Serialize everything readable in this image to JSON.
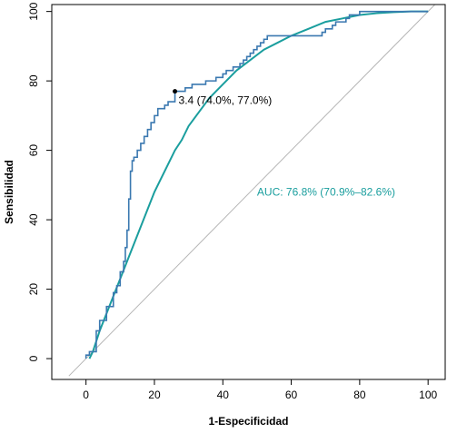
{
  "chart_data": {
    "type": "line",
    "xlabel": "1-Especificidad",
    "ylabel": "Sensibilidad",
    "xlim": [
      -10,
      105
    ],
    "ylim": [
      -6,
      102
    ],
    "x_ticks": [
      0,
      20,
      40,
      60,
      80,
      100
    ],
    "y_ticks": [
      0,
      20,
      40,
      60,
      80,
      100
    ],
    "grid": false,
    "colors": {
      "empirical": "#3a78b0",
      "smooth": "#1a9e9e",
      "diagonal": "#b5b5b5",
      "point": "#000000"
    },
    "series": [
      {
        "kind": "empirical-roc-step",
        "points": [
          [
            0,
            0
          ],
          [
            0,
            1
          ],
          [
            1,
            1
          ],
          [
            1,
            2
          ],
          [
            3,
            2
          ],
          [
            3,
            7
          ],
          [
            3,
            8
          ],
          [
            4,
            8
          ],
          [
            4,
            11
          ],
          [
            6,
            11
          ],
          [
            6,
            15
          ],
          [
            8,
            15
          ],
          [
            8,
            19
          ],
          [
            9,
            19
          ],
          [
            9,
            21
          ],
          [
            10,
            21
          ],
          [
            10,
            25
          ],
          [
            11,
            25
          ],
          [
            11,
            28
          ],
          [
            11.5,
            28
          ],
          [
            11.5,
            32
          ],
          [
            12,
            32
          ],
          [
            12,
            37
          ],
          [
            12.5,
            37
          ],
          [
            12.5,
            46
          ],
          [
            13,
            46
          ],
          [
            13,
            54
          ],
          [
            13.5,
            54
          ],
          [
            13.5,
            57
          ],
          [
            14,
            57
          ],
          [
            14,
            58
          ],
          [
            15,
            58
          ],
          [
            15,
            60
          ],
          [
            16,
            60
          ],
          [
            16,
            62
          ],
          [
            17,
            62
          ],
          [
            17,
            64
          ],
          [
            18,
            64
          ],
          [
            18,
            66
          ],
          [
            19,
            66
          ],
          [
            19,
            68
          ],
          [
            20,
            68
          ],
          [
            20,
            70
          ],
          [
            21,
            70
          ],
          [
            21,
            72
          ],
          [
            23,
            72
          ],
          [
            23,
            73
          ],
          [
            24,
            73
          ],
          [
            24,
            74
          ],
          [
            26,
            74
          ],
          [
            26,
            77
          ],
          [
            29,
            77
          ],
          [
            29,
            78
          ],
          [
            31,
            78
          ],
          [
            31,
            79
          ],
          [
            35,
            79
          ],
          [
            35,
            80
          ],
          [
            38,
            80
          ],
          [
            38,
            81
          ],
          [
            40,
            81
          ],
          [
            40,
            82
          ],
          [
            41,
            82
          ],
          [
            41,
            83
          ],
          [
            43,
            83
          ],
          [
            43,
            84
          ],
          [
            45,
            84
          ],
          [
            45,
            85
          ],
          [
            46,
            85
          ],
          [
            46,
            86
          ],
          [
            47,
            86
          ],
          [
            47,
            87
          ],
          [
            48,
            87
          ],
          [
            48,
            88
          ],
          [
            49,
            88
          ],
          [
            49,
            89
          ],
          [
            50,
            89
          ],
          [
            50,
            90
          ],
          [
            51,
            90
          ],
          [
            51,
            91
          ],
          [
            52,
            91
          ],
          [
            52,
            92
          ],
          [
            53,
            92
          ],
          [
            53,
            93
          ],
          [
            69,
            93
          ],
          [
            69,
            94
          ],
          [
            70,
            94
          ],
          [
            70,
            95
          ],
          [
            72,
            95
          ],
          [
            72,
            96
          ],
          [
            73,
            96
          ],
          [
            73,
            97
          ],
          [
            76,
            97
          ],
          [
            76,
            98
          ],
          [
            77,
            98
          ],
          [
            77,
            99
          ],
          [
            80,
            99
          ],
          [
            80,
            100
          ],
          [
            100,
            100
          ]
        ]
      },
      {
        "kind": "smoothed-roc",
        "points": [
          [
            1,
            0
          ],
          [
            2,
            2
          ],
          [
            3,
            5
          ],
          [
            4,
            8
          ],
          [
            6,
            13
          ],
          [
            8,
            18
          ],
          [
            10,
            23
          ],
          [
            12,
            28
          ],
          [
            14,
            33
          ],
          [
            16,
            38
          ],
          [
            18,
            43
          ],
          [
            20,
            48
          ],
          [
            22,
            52
          ],
          [
            24,
            56
          ],
          [
            26,
            60
          ],
          [
            28,
            63
          ],
          [
            30,
            67
          ],
          [
            33,
            71
          ],
          [
            36,
            75
          ],
          [
            40,
            79
          ],
          [
            44,
            83
          ],
          [
            48,
            86
          ],
          [
            52,
            89
          ],
          [
            56,
            91
          ],
          [
            60,
            93
          ],
          [
            65,
            95
          ],
          [
            70,
            97
          ],
          [
            75,
            98
          ],
          [
            80,
            99
          ],
          [
            85,
            99.5
          ],
          [
            90,
            99.8
          ],
          [
            95,
            100
          ],
          [
            100,
            100
          ]
        ]
      },
      {
        "kind": "reference-diagonal",
        "points": [
          [
            -5,
            -5
          ],
          [
            102,
            102
          ]
        ]
      }
    ],
    "marked_point": {
      "x": 26,
      "y": 77,
      "label": "3.4 (74.0%, 77.0%)"
    },
    "auc_label": "AUC: 76.8% (70.9%–82.6%)"
  }
}
